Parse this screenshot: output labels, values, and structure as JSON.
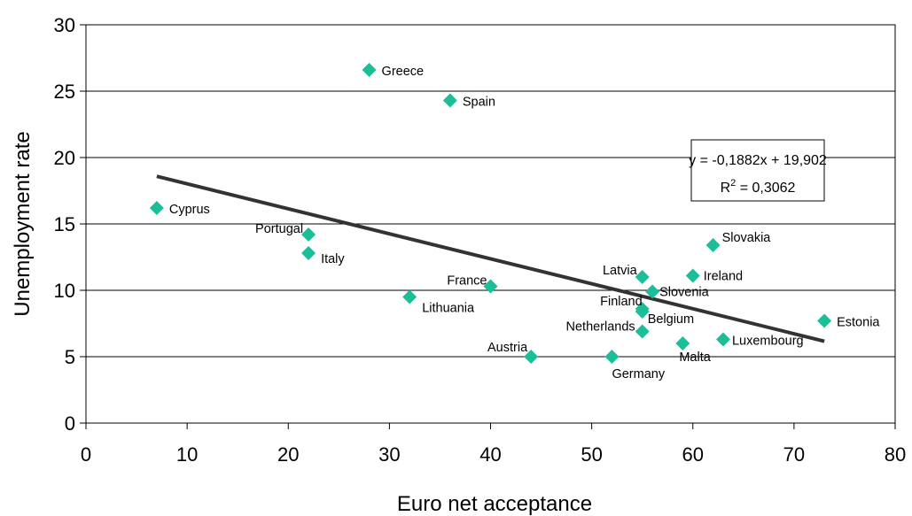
{
  "chart_data": {
    "type": "scatter",
    "xlabel": "Euro net acceptance",
    "ylabel": "Unemployment rate",
    "xlim": [
      0,
      80
    ],
    "ylim": [
      0,
      30
    ],
    "x_ticks": [
      0,
      10,
      20,
      30,
      40,
      50,
      60,
      70,
      80
    ],
    "y_ticks": [
      0,
      5,
      10,
      15,
      20,
      25,
      30
    ],
    "grid": "horizontal",
    "marker": "diamond",
    "marker_color": "#1abf99",
    "points": [
      {
        "label": "Cyprus",
        "x": 7,
        "y": 16.2
      },
      {
        "label": "Greece",
        "x": 28,
        "y": 26.6
      },
      {
        "label": "Spain",
        "x": 36,
        "y": 24.3
      },
      {
        "label": "Portugal",
        "x": 22,
        "y": 14.2
      },
      {
        "label": "Italy",
        "x": 22,
        "y": 12.8
      },
      {
        "label": "Lithuania",
        "x": 32,
        "y": 9.5
      },
      {
        "label": "France",
        "x": 40,
        "y": 10.3
      },
      {
        "label": "Austria",
        "x": 44,
        "y": 5.0
      },
      {
        "label": "Germany",
        "x": 52,
        "y": 5.0
      },
      {
        "label": "Latvia",
        "x": 55,
        "y": 11.0
      },
      {
        "label": "Slovenia",
        "x": 56,
        "y": 9.9
      },
      {
        "label": "Finland",
        "x": 55,
        "y": 8.6
      },
      {
        "label": "Belgium",
        "x": 55,
        "y": 8.4
      },
      {
        "label": "Netherlands",
        "x": 55,
        "y": 6.9
      },
      {
        "label": "Malta",
        "x": 59,
        "y": 6.0
      },
      {
        "label": "Luxembourg",
        "x": 63,
        "y": 6.3
      },
      {
        "label": "Ireland",
        "x": 60,
        "y": 11.1
      },
      {
        "label": "Slovakia",
        "x": 62,
        "y": 13.4
      },
      {
        "label": "Estonia",
        "x": 73,
        "y": 7.7
      }
    ],
    "trendline": {
      "slope": -0.1882,
      "intercept": 19.902,
      "x_range": [
        7,
        73
      ],
      "color": "#333333"
    },
    "annotation": {
      "equation": "y = -0,1882x + 19,902",
      "r2_prefix": "R",
      "r2_sup": "2",
      "r2_value": " = 0,3062"
    }
  }
}
